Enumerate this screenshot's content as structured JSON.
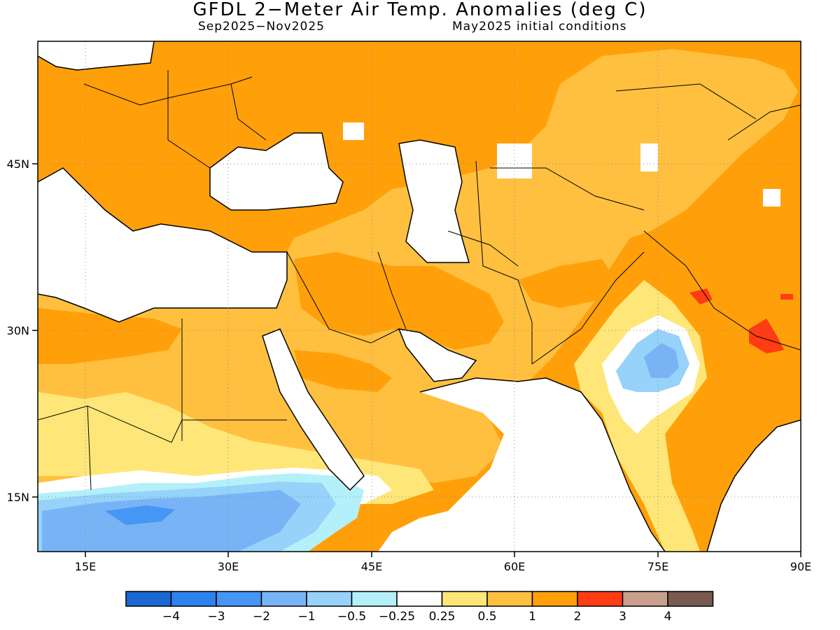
{
  "title": "GFDL 2−Meter Air Temp. Anomalies (deg C)",
  "subtitle_left": "Sep2025−Nov2025",
  "subtitle_right": "May2025 initial conditions",
  "map": {
    "lon_range": [
      10,
      90
    ],
    "lat_range": [
      10,
      56
    ],
    "x_ticks": [
      {
        "lon": 15,
        "label": "15E"
      },
      {
        "lon": 30,
        "label": "30E"
      },
      {
        "lon": 45,
        "label": "45E"
      },
      {
        "lon": 60,
        "label": "60E"
      },
      {
        "lon": 75,
        "label": "75E"
      },
      {
        "lon": 90,
        "label": "90E"
      }
    ],
    "y_ticks": [
      {
        "lat": 45,
        "label": "45N"
      },
      {
        "lat": 30,
        "label": "30N"
      },
      {
        "lat": 15,
        "label": "15N"
      }
    ],
    "gridlines": "dotted"
  },
  "colorbar": {
    "colors": [
      "#1b68d2",
      "#2d82ee",
      "#4596f5",
      "#78b4f5",
      "#96d2fa",
      "#b4f0fa",
      "#ffffff",
      "#ffe678",
      "#ffc040",
      "#ffa00a",
      "#ff3c14",
      "#c8a08c",
      "#785a50"
    ],
    "labels": [
      "−4",
      "−3",
      "−2",
      "−1",
      "−0.5",
      "−0.25",
      "0.25",
      "0.5",
      "1",
      "2",
      "3",
      "4"
    ]
  }
}
